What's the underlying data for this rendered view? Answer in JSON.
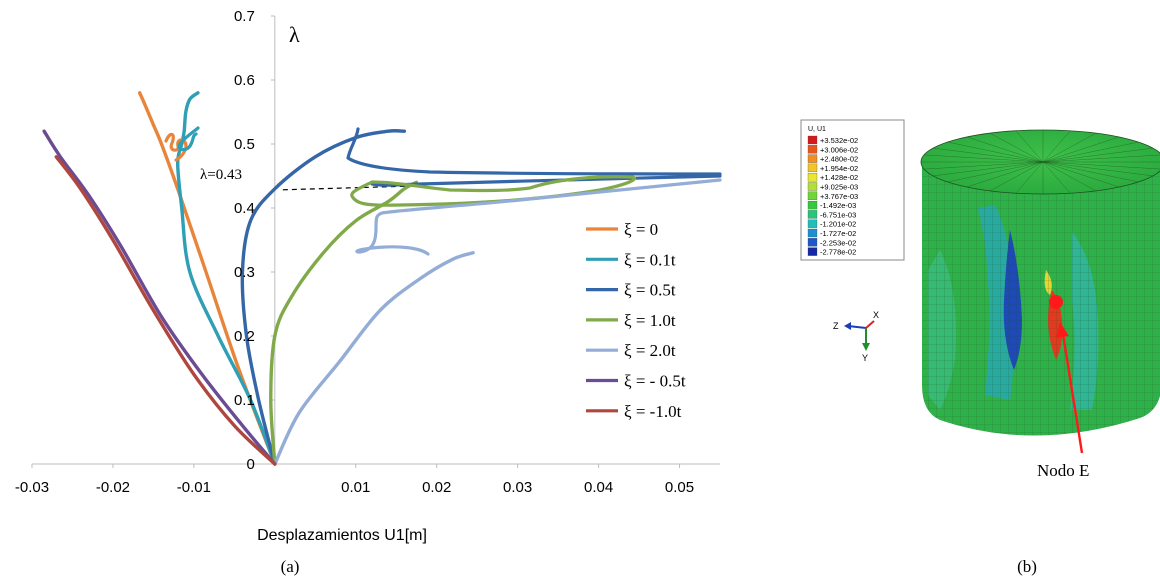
{
  "chart_data": {
    "type": "line",
    "xlabel": "Desplazamientos U1[m]",
    "ylabel": "λ",
    "xlim": [
      -0.03,
      0.055
    ],
    "ylim": [
      0,
      0.7
    ],
    "x_ticks": [
      "-0.03",
      "-0.02",
      "-0.01",
      "0.01",
      "0.02",
      "0.03",
      "0.04",
      "0.05"
    ],
    "x_tick_values": [
      -0.03,
      -0.02,
      -0.01,
      0.01,
      0.02,
      0.03,
      0.04,
      0.05
    ],
    "y_ticks": [
      "0",
      "0.1",
      "0.2",
      "0.3",
      "0.4",
      "0.5",
      "0.6",
      "0.7"
    ],
    "y_tick_values": [
      0,
      0.1,
      0.2,
      0.3,
      0.4,
      0.5,
      0.6,
      0.7
    ],
    "y_axis_at_x": 0.0,
    "annotation": {
      "text": "λ=0.43",
      "x": 0.0,
      "y": 0.43
    },
    "legend_position": "right",
    "series": [
      {
        "name": "ξ = 0",
        "color": "#E8853A",
        "x": [
          0.0,
          -0.0045,
          -0.0085,
          -0.012,
          -0.014,
          -0.015,
          -0.016,
          -0.0167
        ],
        "y": [
          0.0,
          0.15,
          0.3,
          0.43,
          0.5,
          0.53,
          0.56,
          0.58
        ]
      },
      {
        "name": "ξ = 0.1t",
        "color": "#2E9FB5",
        "x": [
          0.0,
          -0.003,
          -0.007,
          -0.0105,
          -0.0115,
          -0.012,
          -0.0115,
          -0.0112,
          -0.011,
          -0.0105,
          -0.0095
        ],
        "y": [
          0.0,
          0.1,
          0.2,
          0.3,
          0.4,
          0.47,
          0.5,
          0.52,
          0.55,
          0.57,
          0.58
        ]
      },
      {
        "name": "ξ = 0.5t",
        "color": "#3567A8",
        "x": [
          0.0,
          -0.002,
          -0.0035,
          -0.004,
          -0.003,
          0.0,
          0.005,
          0.01,
          0.014,
          0.016
        ],
        "y": [
          0.0,
          0.1,
          0.2,
          0.3,
          0.38,
          0.43,
          0.48,
          0.51,
          0.52,
          0.52
        ]
      },
      {
        "name": "ξ = 1.0t",
        "color": "#80A94A",
        "x": [
          0.0,
          -0.0005,
          0.0,
          0.002,
          0.006,
          0.01,
          0.014,
          0.016,
          0.0175
        ],
        "y": [
          0.0,
          0.1,
          0.2,
          0.26,
          0.33,
          0.38,
          0.41,
          0.43,
          0.44
        ]
      },
      {
        "name": "ξ = 2.0t",
        "color": "#93ADD6",
        "x": [
          0.0,
          0.003,
          0.008,
          0.013,
          0.018,
          0.022,
          0.0245
        ],
        "y": [
          0.0,
          0.08,
          0.16,
          0.24,
          0.29,
          0.32,
          0.33
        ]
      },
      {
        "name": "ξ = - 0.5t",
        "color": "#6B4B93",
        "x": [
          0.0,
          -0.004,
          -0.009,
          -0.014,
          -0.019,
          -0.023,
          -0.0265,
          -0.0285
        ],
        "y": [
          0.0,
          0.06,
          0.14,
          0.23,
          0.34,
          0.42,
          0.48,
          0.52
        ]
      },
      {
        "name": "ξ = -1.0t",
        "color": "#B0473F",
        "x": [
          0.0,
          -0.005,
          -0.01,
          -0.015,
          -0.02,
          -0.024,
          -0.027
        ],
        "y": [
          0.0,
          0.06,
          0.14,
          0.24,
          0.35,
          0.43,
          0.48
        ]
      }
    ]
  },
  "panel_a_label": "(a)",
  "panel_b_label": "(b)",
  "contour_legend": {
    "title": "U, U1",
    "values": [
      "+3.532e-02",
      "+3.006e-02",
      "+2.480e-02",
      "+1.954e-02",
      "+1.428e-02",
      "+9.025e-03",
      "+3.767e-03",
      "-1.492e-03",
      "-6.751e-03",
      "-1.201e-02",
      "-1.727e-02",
      "-2.253e-02",
      "-2.778e-02"
    ],
    "colors": [
      "#D8191B",
      "#E8561C",
      "#F08F23",
      "#F3C52A",
      "#E7E733",
      "#B0E035",
      "#71D53A",
      "#35C93F",
      "#23C77A",
      "#22BFBA",
      "#1E8FD3",
      "#1B58C9",
      "#1428A8"
    ]
  },
  "triad": {
    "z": "Z",
    "x": "X",
    "y": "Y"
  },
  "node_label": "Nodo E"
}
